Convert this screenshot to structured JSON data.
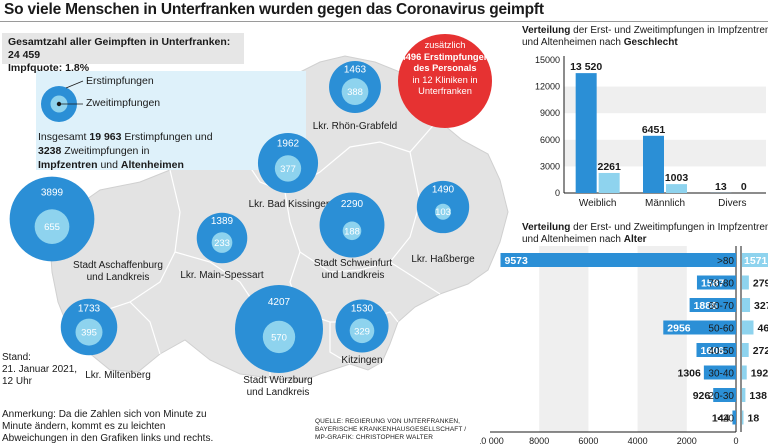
{
  "title": "So viele Menschen in Unterfranken wurden gegen das Coronavirus geimpft",
  "summary": {
    "line1_label": "Gesamtzahl aller Geimpften in Unterfranken:",
    "line1_value": "24 459",
    "line2_label": "Impfquote:",
    "line2_value": "1,8%"
  },
  "map_legend": {
    "first_label": "Erstimpfungen",
    "second_label": "Zweitimpfungen",
    "total_prefix": "Insgesamt",
    "total_first": "19 963",
    "total_first_suffix": "Erstimpfungen und",
    "total_second": "3238",
    "total_second_suffix": "Zweitimpfungen in",
    "total_place1": "Impfzentren",
    "total_und": "und",
    "total_place2": "Altenheimen"
  },
  "staff_note": {
    "line1": "zusätzlich",
    "line2": "4496 Erstimpfungen",
    "line3": "des Personals",
    "line4": "in 12 Kliniken in",
    "line5": "Unterfranken"
  },
  "regions": [
    {
      "name_lines": [
        "Lkr. Rhön-Grabfeld"
      ],
      "first": 1463,
      "second": 388
    },
    {
      "name_lines": [
        "Lkr. Bad Kissingen"
      ],
      "first": 1962,
      "second": 377
    },
    {
      "name_lines": [
        "Lkr. Haßberge"
      ],
      "first": 1490,
      "second": 103
    },
    {
      "name_lines": [
        "Stadt Aschaffenburg",
        "und Landkreis"
      ],
      "first": 3899,
      "second": 655
    },
    {
      "name_lines": [
        "Lkr. Main-Spessart"
      ],
      "first": 1389,
      "second": 233
    },
    {
      "name_lines": [
        "Stadt Schweinfurt",
        "und Landkreis"
      ],
      "first": 2290,
      "second": 188
    },
    {
      "name_lines": [
        "Lkr. Miltenberg"
      ],
      "first": 1733,
      "second": 395
    },
    {
      "name_lines": [
        "Stadt Würzburg",
        "und Landkreis"
      ],
      "first": 4207,
      "second": 570
    },
    {
      "name_lines": [
        "Kitzingen"
      ],
      "first": 1530,
      "second": 329
    }
  ],
  "stand": {
    "line1": "Stand:",
    "line2": "21. Januar 2021,",
    "line3": "12 Uhr"
  },
  "note": {
    "line1": "Anmerkung: Da die Zahlen sich von Minute zu",
    "line2": "Minute ändern, kommt es zu leichten",
    "line3": "Abweichungen in den Grafiken links und rechts."
  },
  "source": {
    "line1": "QUELLE: REGIERUNG VON UNTERFRANKEN,",
    "line2": "BAYERISCHE KRANKENHAUSGESELLSCHAFT /",
    "line3": "MP-GRAFIK: CHRISTOPHER WALTER"
  },
  "colors": {
    "first": "#2b8fd6",
    "second": "#8ed3ee",
    "map_fill": "#e3e3e3",
    "map_outline": "#ffffff",
    "staff_circle": "#e63232",
    "legend_bg": "#def1fa"
  },
  "chart_data": [
    {
      "type": "bar",
      "title_lines": [
        "Verteilung der Erst- und Zweitimpfungen in Impfzentren",
        "und Altenheimen nach Geschlecht"
      ],
      "title_bold_first_word": "Verteilung",
      "title_bold_last_word": "Geschlecht",
      "categories": [
        "Weiblich",
        "Männlich",
        "Divers"
      ],
      "series": [
        {
          "values": [
            13520,
            6451,
            13
          ]
        },
        {
          "values": [
            2261,
            1003,
            0
          ]
        }
      ],
      "value_labels": [
        [
          "13 520",
          "6451",
          "13"
        ],
        [
          "2261",
          "1003",
          "0"
        ]
      ],
      "ylim": [
        0,
        15000
      ],
      "yticks": [
        0,
        3000,
        6000,
        9000,
        12000,
        15000
      ],
      "grid": true
    },
    {
      "type": "bar",
      "title_lines": [
        "Verteilung der Erst- und Zweitimpfungen in Impfzentren",
        "und Altenheimen nach Alter"
      ],
      "title_bold_first_word": "Verteilung",
      "title_bold_last_word": "Alter",
      "orientation": "horizontal",
      "categories": [
        ">80",
        "70-80",
        "60-70",
        "50-60",
        "40-50",
        "30-40",
        "20-30",
        "<20"
      ],
      "series": [
        {
          "values": [
            9573,
            1587,
            1886,
            2956,
            1606,
            1306,
            926,
            144
          ]
        },
        {
          "values": [
            1571,
            279,
            327,
            467,
            272,
            192,
            138,
            18
          ]
        }
      ],
      "xticks": [
        "10 000",
        "8000",
        "6000",
        "4000",
        "2000",
        "0"
      ],
      "xtick_values": [
        10000,
        8000,
        6000,
        4000,
        2000,
        0
      ],
      "xlim": [
        0,
        10000
      ]
    }
  ]
}
